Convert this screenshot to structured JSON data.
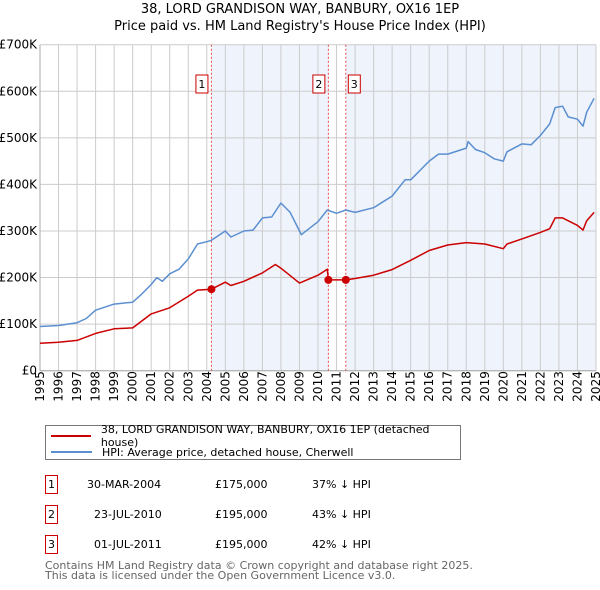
{
  "title_line1": "38, LORD GRANDISON WAY, BANBURY, OX16 1EP",
  "title_line2": "Price paid vs. HM Land Registry's House Price Index (HPI)",
  "colors": {
    "property": "#cc0000",
    "hpi": "#5b8fd0",
    "shade": "#eef3fc",
    "grid": "#cccccc"
  },
  "chart_data": {
    "type": "line",
    "xlim": [
      1995,
      2025
    ],
    "ylim": [
      0,
      700000
    ],
    "yticks": [
      0,
      100000,
      200000,
      300000,
      400000,
      500000,
      600000,
      700000
    ],
    "ytick_labels": [
      "£0",
      "£100K",
      "£200K",
      "£300K",
      "£400K",
      "£500K",
      "£600K",
      "£700K"
    ],
    "xtick_labels": [
      "1995",
      "1996",
      "1997",
      "1998",
      "1999",
      "2000",
      "2001",
      "2002",
      "2003",
      "2004",
      "2005",
      "2006",
      "2007",
      "2008",
      "2009",
      "2010",
      "2011",
      "2012",
      "2013",
      "2014",
      "2015",
      "2016",
      "2017",
      "2018",
      "2019",
      "2020",
      "2021",
      "2022",
      "2023",
      "2024",
      "2025"
    ],
    "grid": true,
    "series": [
      {
        "name": "38, LORD GRANDISON WAY, BANBURY, OX16 1EP (detached house)",
        "x": [
          1995,
          1996,
          1997,
          1998,
          1999,
          2000,
          2001,
          2002,
          2003,
          2003.5,
          2004.25,
          2005,
          2005.3,
          2006,
          2007,
          2007.7,
          2008,
          2009,
          2010,
          2010.5,
          2010.56,
          2011,
          2011.5,
          2012,
          2013,
          2014,
          2015,
          2016,
          2017,
          2018,
          2019,
          2020,
          2020.2,
          2021,
          2022,
          2022.5,
          2022.8,
          2023.2,
          2024,
          2024.3,
          2024.5,
          2024.9
        ],
        "y": [
          59000,
          61000,
          65000,
          80000,
          90000,
          92000,
          122000,
          135000,
          160000,
          173000,
          175000,
          190000,
          183000,
          192000,
          210000,
          228000,
          220000,
          188000,
          205000,
          218000,
          195000,
          195000,
          195000,
          198000,
          205000,
          217000,
          237000,
          258000,
          270000,
          275000,
          272000,
          262000,
          272000,
          283000,
          297000,
          305000,
          328000,
          328000,
          312000,
          302000,
          322000,
          340000
        ]
      },
      {
        "name": "HPI: Average price, detached house, Cherwell",
        "x": [
          1995,
          1996,
          1997,
          1997.5,
          1998,
          1999,
          2000,
          2000.5,
          2001,
          2001.3,
          2001.6,
          2002,
          2002.5,
          2003,
          2003.5,
          2004,
          2004.25,
          2005,
          2005.3,
          2006,
          2006.5,
          2007,
          2007.5,
          2008,
          2008.5,
          2009,
          2009.1,
          2010,
          2010.5,
          2011,
          2011.5,
          2012,
          2013,
          2014,
          2014.7,
          2015,
          2016,
          2016.5,
          2017,
          2018,
          2018.1,
          2018.5,
          2019,
          2019.5,
          2020,
          2020.2,
          2021,
          2021.5,
          2022,
          2022.5,
          2022.8,
          2023.2,
          2023.5,
          2024,
          2024.3,
          2024.5,
          2024.9
        ],
        "y": [
          95000,
          97000,
          103000,
          112000,
          130000,
          143000,
          147000,
          165000,
          185000,
          200000,
          192000,
          208000,
          218000,
          240000,
          272000,
          277000,
          280000,
          300000,
          287000,
          300000,
          302000,
          328000,
          330000,
          360000,
          340000,
          300000,
          292000,
          320000,
          345000,
          338000,
          345000,
          340000,
          350000,
          375000,
          410000,
          410000,
          450000,
          465000,
          465000,
          478000,
          492000,
          475000,
          468000,
          455000,
          450000,
          470000,
          487000,
          485000,
          505000,
          530000,
          565000,
          568000,
          545000,
          540000,
          525000,
          555000,
          585000
        ]
      }
    ],
    "sales": [
      {
        "label": "1",
        "x": 2004.25,
        "y": 175000,
        "date": "30-MAR-2004",
        "price": "£175,000",
        "hpi": "37% ↓ HPI"
      },
      {
        "label": "2",
        "x": 2010.56,
        "y": 195000,
        "date": "23-JUL-2010",
        "price": "£195,000",
        "hpi": "43% ↓ HPI"
      },
      {
        "label": "3",
        "x": 2011.5,
        "y": 195000,
        "date": "01-JUL-2011",
        "price": "£195,000",
        "hpi": "42% ↓ HPI"
      }
    ]
  },
  "footer_line1": "Contains HM Land Registry data © Crown copyright and database right 2025.",
  "footer_line2": "This data is licensed under the Open Government Licence v3.0."
}
